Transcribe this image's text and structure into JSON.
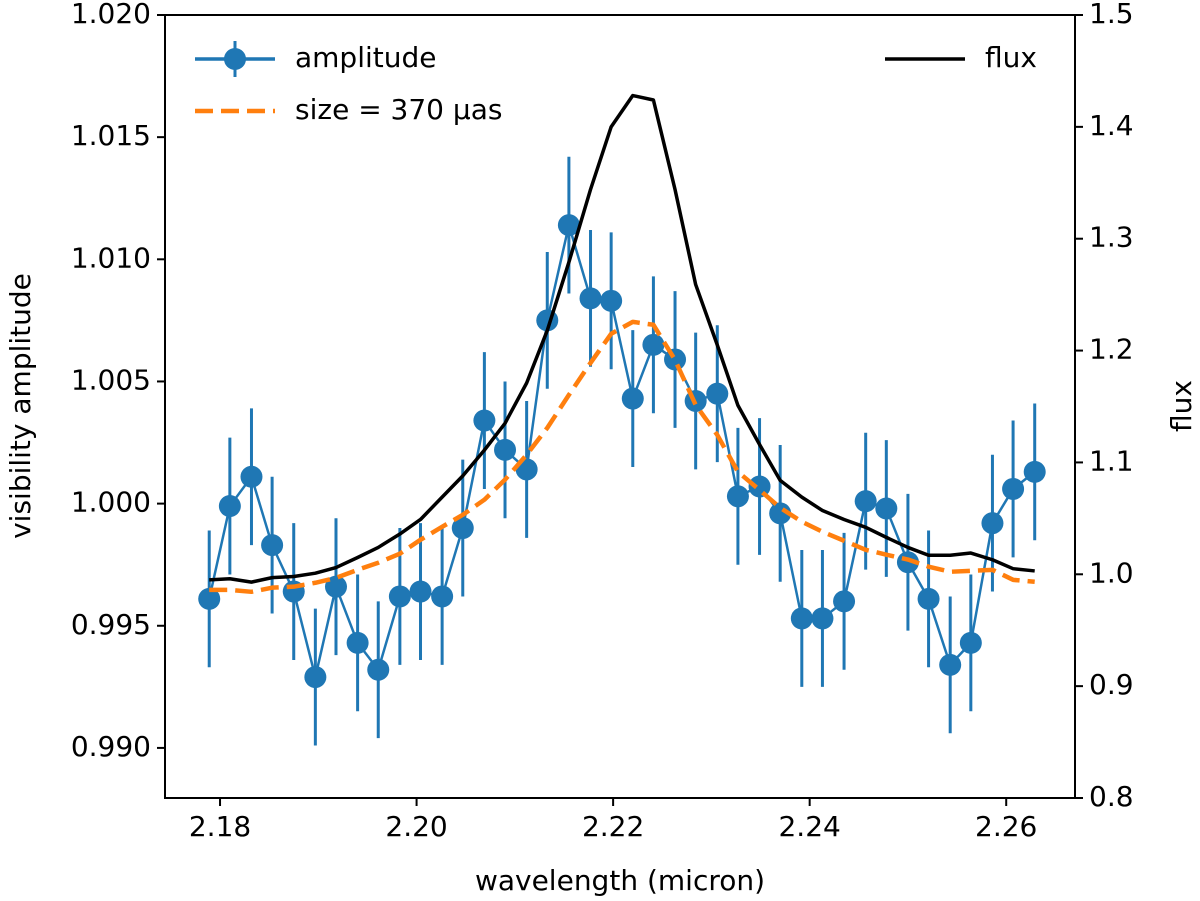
{
  "chart_data": {
    "type": "line",
    "xlabel": "wavelength (micron)",
    "ylabel": "visibility amplitude",
    "y2label": "flux",
    "x": [
      2.1789,
      2.181,
      2.1832,
      2.1853,
      2.1875,
      2.1897,
      2.1918,
      2.194,
      2.1961,
      2.1983,
      2.2004,
      2.2026,
      2.2047,
      2.2069,
      2.209,
      2.2112,
      2.2133,
      2.2155,
      2.2177,
      2.2198,
      2.222,
      2.2241,
      2.2263,
      2.2284,
      2.2306,
      2.2327,
      2.2349,
      2.237,
      2.2392,
      2.2413,
      2.2435,
      2.2457,
      2.2478,
      2.25,
      2.2521,
      2.2543,
      2.2564,
      2.2586,
      2.2607,
      2.2629
    ],
    "series": [
      {
        "name": "amplitude",
        "color": "#1f77b4",
        "style": "errorbar",
        "legend": "upper left",
        "error": 0.0028,
        "values": [
          0.9961,
          0.9999,
          1.0011,
          0.9983,
          0.9964,
          0.9929,
          0.9966,
          0.9943,
          0.9932,
          0.9962,
          0.9964,
          0.9962,
          0.999,
          1.0034,
          1.0022,
          1.0014,
          1.0075,
          1.0114,
          1.0084,
          1.0083,
          1.0043,
          1.0065,
          1.0059,
          1.0042,
          1.0045,
          1.0003,
          1.0007,
          0.9996,
          0.9953,
          0.9953,
          0.996,
          1.0001,
          0.9998,
          0.9976,
          0.9961,
          0.9934,
          0.9943,
          0.9992,
          1.0006,
          1.0013
        ]
      },
      {
        "name": "size = 370 μas",
        "color": "#ff7f0e",
        "style": "dashed",
        "legend": "upper left",
        "values": [
          0.99647,
          0.99647,
          0.99639,
          0.99656,
          0.9966,
          0.99676,
          0.99696,
          0.99729,
          0.99758,
          0.99795,
          0.99852,
          0.99905,
          0.99954,
          1.00016,
          1.00098,
          1.002,
          1.0031,
          1.00445,
          1.00576,
          1.00695,
          1.00744,
          1.00732,
          1.00588,
          1.00404,
          1.00281,
          1.0013,
          1.00056,
          0.99983,
          0.99926,
          0.99885,
          0.99848,
          0.99811,
          0.99791,
          0.99771,
          0.99742,
          0.99721,
          0.99725,
          0.99729,
          0.99688,
          0.9968
        ]
      },
      {
        "name": "flux",
        "color": "#000000",
        "style": "solid",
        "legend": "upper right",
        "axis": "y2",
        "values": [
          0.995,
          0.996,
          0.993,
          0.997,
          0.998,
          1.001,
          1.006,
          1.015,
          1.024,
          1.036,
          1.049,
          1.069,
          1.088,
          1.111,
          1.135,
          1.171,
          1.218,
          1.279,
          1.344,
          1.4,
          1.428,
          1.424,
          1.344,
          1.259,
          1.205,
          1.151,
          1.116,
          1.084,
          1.069,
          1.057,
          1.049,
          1.042,
          1.033,
          1.024,
          1.017,
          1.017,
          1.019,
          1.013,
          1.005,
          1.003
        ]
      }
    ],
    "xlim": [
      2.1744,
      2.267
    ],
    "xticks": [
      {
        "value": 2.18,
        "label": "2.18"
      },
      {
        "value": 2.2,
        "label": "2.20"
      },
      {
        "value": 2.22,
        "label": "2.22"
      },
      {
        "value": 2.24,
        "label": "2.24"
      },
      {
        "value": 2.26,
        "label": "2.26"
      }
    ],
    "ylim": [
      0.98795,
      1.02
    ],
    "yticks": [
      {
        "value": 0.99,
        "label": "0.990"
      },
      {
        "value": 0.995,
        "label": "0.995"
      },
      {
        "value": 1.0,
        "label": "1.000"
      },
      {
        "value": 1.005,
        "label": "1.005"
      },
      {
        "value": 1.01,
        "label": "1.010"
      },
      {
        "value": 1.015,
        "label": "1.015"
      },
      {
        "value": 1.02,
        "label": "1.020"
      }
    ],
    "y2lim": [
      0.8,
      1.5
    ],
    "y2ticks": [
      0.8,
      0.9,
      {
        "value": 1.0,
        "label": "1.0"
      },
      1.1,
      1.2,
      1.3,
      1.4,
      1.5
    ]
  }
}
